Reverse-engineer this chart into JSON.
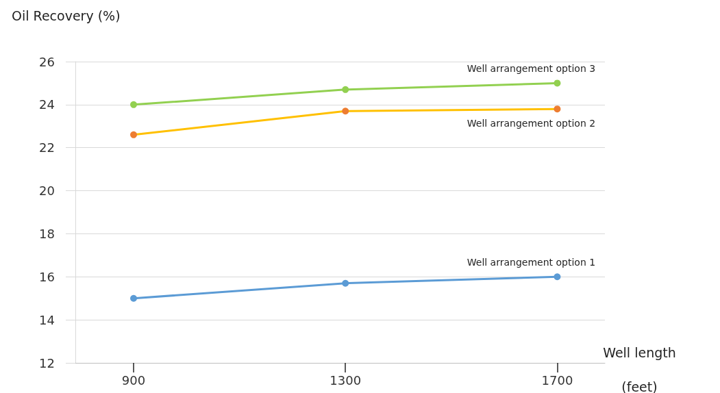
{
  "chart_data": {
    "type": "line",
    "ylabel": "Oil Recovery (%)",
    "xlabel": "Well length\n(feet)",
    "x": [
      900,
      1300,
      1700
    ],
    "xlim": [
      790,
      1790
    ],
    "xticks": [
      900,
      1300,
      1700
    ],
    "ylim": [
      12,
      26
    ],
    "yticks": [
      12,
      14,
      16,
      18,
      20,
      22,
      24,
      26
    ],
    "grid": "y",
    "legend": false,
    "marker": "circle",
    "line_style": "solid",
    "series": [
      {
        "name": "Well arrangement option 1",
        "color": "#5b9bd5",
        "values": [
          15.0,
          15.7,
          16.0
        ]
      },
      {
        "name": "Well arrangement option 2",
        "color": "#ffc000",
        "colors": [
          "#ed7d31",
          "#ed7d31",
          "#ed7d31"
        ],
        "values": [
          22.6,
          23.7,
          23.8
        ]
      },
      {
        "name": "Well arrangement option 3",
        "color": "#92d050",
        "values": [
          24.0,
          24.7,
          25.0
        ]
      }
    ]
  }
}
